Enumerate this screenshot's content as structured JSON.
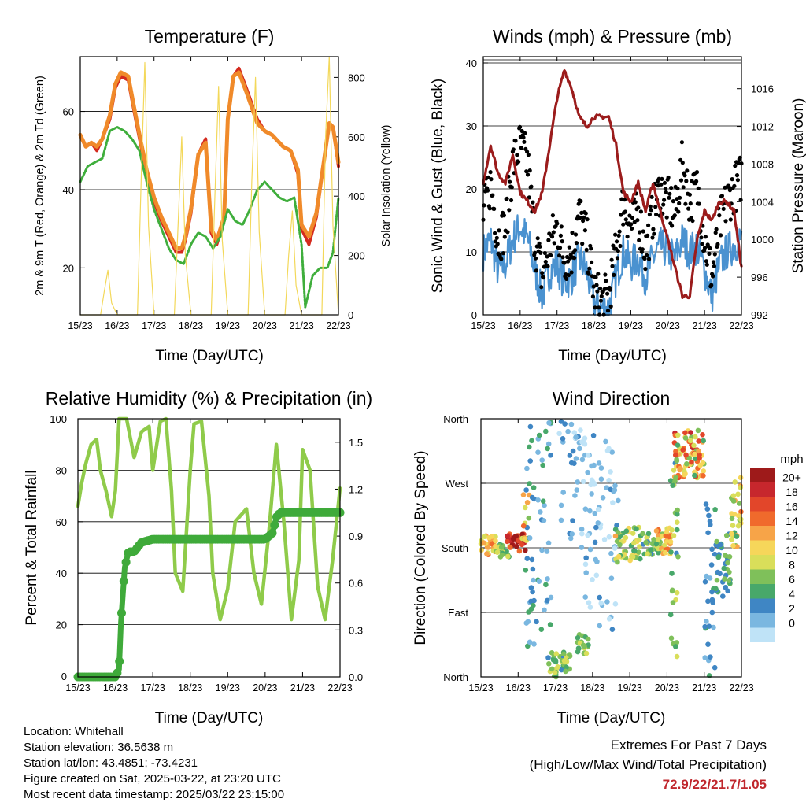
{
  "footer": {
    "location": "Location: Whitehall",
    "elevation": "Station elevation: 36.5638 m",
    "latlon": "Station lat/lon: 43.4851; -73.4231",
    "created": "Figure created on Sat, 2025-03-22, at 23:20 UTC",
    "latest": "Most recent data timestamp: 2025/03/22 23:15:00",
    "extremes_title": "Extremes For Past 7 Days",
    "extremes_sub": "(High/Low/Max Wind/Total Precipitation)",
    "extremes_values": "72.9/22/21.7/1.05"
  },
  "colors": {
    "temp2m": "#d42a1e",
    "temp9m": "#f08a2a",
    "dew": "#3fae3c",
    "solar": "#f3d85a",
    "gust": "#000000",
    "wind": "#4a92d0",
    "pressure": "#9b1c1c",
    "rh": "#8fcb4a",
    "precip": "#3faa3a"
  },
  "chart_data": [
    {
      "type": "line",
      "title": "Temperature (F)",
      "xlabel": "Time (Day/UTC)",
      "ylabel": "2m & 9m T (Red, Orange) & 2m Td (Green)",
      "y2label": "Solar Insolation (Yellow)",
      "xticks": [
        "15/23",
        "16/23",
        "17/23",
        "18/23",
        "19/23",
        "20/23",
        "21/23",
        "22/23"
      ],
      "xlim": [
        0,
        7
      ],
      "ylim": [
        8,
        74
      ],
      "yticks": [
        20,
        40,
        60
      ],
      "y2lim": [
        0,
        870
      ],
      "y2ticks": [
        0,
        200,
        400,
        600,
        800
      ],
      "grid": true,
      "series": [
        {
          "key": "temp2m",
          "x": [
            0,
            0.15,
            0.3,
            0.45,
            0.6,
            0.8,
            0.95,
            1.1,
            1.3,
            1.5,
            1.8,
            2.0,
            2.2,
            2.4,
            2.6,
            2.75,
            2.85,
            3.0,
            3.2,
            3.4,
            3.55,
            3.7,
            3.9,
            4.0,
            4.15,
            4.3,
            4.5,
            4.8,
            5.0,
            5.2,
            5.5,
            5.7,
            5.9,
            6.0,
            6.2,
            6.4,
            6.6,
            6.75,
            6.85,
            7.0
          ],
          "y": [
            54,
            51,
            52,
            50,
            53,
            58,
            66,
            69,
            68,
            58,
            44,
            37,
            32,
            28,
            24,
            24,
            27,
            34,
            49,
            53,
            29,
            26,
            32,
            58,
            69,
            71,
            66,
            58,
            55,
            54,
            51,
            50,
            44,
            30,
            26,
            33,
            47,
            57,
            56,
            46
          ]
        },
        {
          "key": "temp9m",
          "x": [
            0,
            0.15,
            0.3,
            0.45,
            0.6,
            0.8,
            0.95,
            1.1,
            1.3,
            1.5,
            1.8,
            2.0,
            2.2,
            2.4,
            2.6,
            2.75,
            2.85,
            3.0,
            3.2,
            3.4,
            3.55,
            3.7,
            3.9,
            4.0,
            4.15,
            4.3,
            4.5,
            4.8,
            5.0,
            5.2,
            5.5,
            5.7,
            5.9,
            6.0,
            6.2,
            6.4,
            6.6,
            6.75,
            6.85,
            7.0
          ],
          "y": [
            54,
            51,
            52,
            51,
            53,
            59,
            67,
            70,
            69,
            59,
            45,
            38,
            33,
            29,
            25,
            25,
            28,
            35,
            49,
            52,
            30,
            27,
            33,
            58,
            69,
            70,
            65,
            57,
            55,
            54,
            51,
            50,
            45,
            31,
            28,
            34,
            47,
            57,
            56,
            47
          ]
        },
        {
          "key": "dew",
          "x": [
            0,
            0.2,
            0.4,
            0.6,
            0.8,
            1.0,
            1.2,
            1.4,
            1.6,
            1.8,
            2.0,
            2.2,
            2.4,
            2.6,
            2.8,
            3.0,
            3.2,
            3.4,
            3.6,
            3.8,
            4.0,
            4.2,
            4.4,
            4.6,
            4.8,
            5.0,
            5.2,
            5.4,
            5.6,
            5.8,
            6.0,
            6.1,
            6.3,
            6.5,
            6.7,
            6.85,
            7.0
          ],
          "y": [
            42,
            46,
            47,
            48,
            55,
            56,
            55,
            53,
            50,
            42,
            35,
            30,
            25,
            22,
            21,
            26,
            29,
            28,
            25,
            28,
            35,
            32,
            31,
            35,
            40,
            42,
            40,
            38,
            37,
            38,
            26,
            10,
            18,
            20,
            20,
            24,
            38
          ]
        },
        {
          "key": "solar",
          "x": [
            0,
            0.55,
            0.65,
            0.75,
            0.85,
            1.0,
            1.55,
            1.65,
            1.75,
            1.85,
            2.0,
            2.55,
            2.65,
            2.75,
            2.85,
            3.0,
            3.55,
            3.65,
            3.75,
            3.85,
            4.0,
            4.55,
            4.65,
            4.75,
            4.85,
            5.0,
            5.55,
            5.65,
            5.75,
            5.85,
            6.0,
            6.55,
            6.65,
            6.75,
            6.85,
            7.0
          ],
          "y": [
            0,
            0,
            80,
            150,
            40,
            0,
            0,
            450,
            850,
            300,
            0,
            0,
            300,
            600,
            200,
            0,
            0,
            400,
            770,
            250,
            0,
            0,
            450,
            800,
            280,
            0,
            0,
            200,
            350,
            100,
            0,
            0,
            600,
            870,
            300,
            0
          ]
        }
      ]
    },
    {
      "type": "line",
      "title": "Winds (mph) & Pressure (mb)",
      "xlabel": "Time (Day/UTC)",
      "ylabel": "Sonic Wind & Gust (Blue, Black)",
      "y2label": "Station Pressure (Maroon)",
      "xticks": [
        "15/23",
        "16/23",
        "17/23",
        "18/23",
        "19/23",
        "20/23",
        "21/23",
        "22/23"
      ],
      "xlim": [
        0,
        7
      ],
      "ylim": [
        0,
        41
      ],
      "yticks": [
        0,
        10,
        20,
        30,
        40
      ],
      "y2lim": [
        992,
        1019.4
      ],
      "y2ticks": [
        992,
        996,
        1000,
        1004,
        1008,
        1012,
        1016
      ],
      "grid": true,
      "series": [
        {
          "key": "gust",
          "x": [
            0,
            0.2,
            0.4,
            0.6,
            0.8,
            1.0,
            1.2,
            1.4,
            1.6,
            1.8,
            2.0,
            2.2,
            2.4,
            2.6,
            2.8,
            3.0,
            3.2,
            3.4,
            3.6,
            3.8,
            4.0,
            4.2,
            4.4,
            4.6,
            4.8,
            5.0,
            5.2,
            5.4,
            5.6,
            5.8,
            6.0,
            6.2,
            6.4,
            6.6,
            6.8,
            7.0
          ],
          "y": [
            16,
            21,
            12,
            14,
            24,
            27,
            24,
            12,
            6,
            11,
            14,
            9,
            10,
            16,
            12,
            4,
            2,
            3,
            10,
            18,
            14,
            16,
            10,
            16,
            20,
            18,
            16,
            24,
            18,
            20,
            12,
            6,
            14,
            18,
            20,
            22
          ]
        },
        {
          "key": "wind",
          "x": [
            0,
            0.2,
            0.4,
            0.6,
            0.8,
            1.0,
            1.2,
            1.4,
            1.6,
            1.8,
            2.0,
            2.2,
            2.4,
            2.6,
            2.8,
            3.0,
            3.2,
            3.4,
            3.6,
            3.8,
            4.0,
            4.2,
            4.4,
            4.6,
            4.8,
            5.0,
            5.2,
            5.4,
            5.6,
            5.8,
            6.0,
            6.2,
            6.4,
            6.6,
            6.8,
            7.0
          ],
          "y": [
            10,
            12,
            7,
            8,
            12,
            14,
            12,
            7,
            3,
            7,
            8,
            5,
            6,
            9,
            7,
            2,
            1,
            1,
            6,
            10,
            8,
            9,
            6,
            9,
            11,
            10,
            9,
            12,
            10,
            11,
            7,
            3,
            8,
            10,
            11,
            12
          ]
        },
        {
          "key": "pressure",
          "x": [
            0,
            0.2,
            0.4,
            0.6,
            0.8,
            1.0,
            1.2,
            1.4,
            1.6,
            1.8,
            2.0,
            2.2,
            2.4,
            2.6,
            2.8,
            3.0,
            3.2,
            3.4,
            3.6,
            3.8,
            4.0,
            4.2,
            4.4,
            4.6,
            4.8,
            5.0,
            5.2,
            5.4,
            5.6,
            5.8,
            6.0,
            6.2,
            6.4,
            6.6,
            6.8,
            7.0
          ],
          "y": [
            1006,
            1010,
            1007,
            1006,
            1009,
            1005,
            1004,
            1003,
            1005,
            1010,
            1015,
            1018,
            1016,
            1013,
            1012,
            1013,
            1013,
            1013,
            1010,
            1005,
            1004,
            1006,
            1003,
            1006,
            1003,
            1000,
            997,
            994,
            994,
            1000,
            1003,
            1002,
            1004,
            1004,
            1003,
            997
          ]
        }
      ]
    },
    {
      "type": "line",
      "title": "Relative Humidity (%) & Precipitation (in)",
      "xlabel": "Time (Day/UTC)",
      "ylabel": "Percent & Total Rainfall",
      "xticks": [
        "15/23",
        "16/23",
        "17/23",
        "18/23",
        "19/23",
        "20/23",
        "21/23",
        "22/23"
      ],
      "xlim": [
        0,
        7
      ],
      "ylim": [
        -0.3,
        100
      ],
      "yticks": [
        0,
        20,
        40,
        60,
        80,
        100
      ],
      "y2lim": [
        0,
        1.65
      ],
      "y2ticks": [
        "0.0",
        "0.3",
        "0.6",
        "0.9",
        "1.2",
        "1.5"
      ],
      "grid": true,
      "series": [
        {
          "key": "rh",
          "x": [
            0,
            0.1,
            0.2,
            0.35,
            0.5,
            0.6,
            0.75,
            0.9,
            1.0,
            1.1,
            1.3,
            1.5,
            1.7,
            1.9,
            2.0,
            2.2,
            2.35,
            2.5,
            2.6,
            2.8,
            3.0,
            3.1,
            3.3,
            3.5,
            3.6,
            3.8,
            4.0,
            4.2,
            4.5,
            4.7,
            4.9,
            5.1,
            5.3,
            5.5,
            5.7,
            5.9,
            6.0,
            6.2,
            6.4,
            6.6,
            6.8,
            7.0
          ],
          "y": [
            66,
            75,
            82,
            90,
            92,
            80,
            72,
            62,
            72,
            100,
            100,
            85,
            95,
            97,
            80,
            99,
            100,
            72,
            40,
            33,
            80,
            98,
            99,
            70,
            40,
            22,
            34,
            60,
            65,
            40,
            28,
            56,
            90,
            60,
            22,
            45,
            88,
            80,
            35,
            22,
            45,
            73
          ]
        },
        {
          "key": "precip",
          "x": [
            0,
            0.5,
            1.0,
            1.1,
            1.15,
            1.25,
            1.35,
            1.5,
            1.7,
            2.0,
            3.0,
            4.0,
            5.0,
            5.2,
            5.3,
            5.4,
            6.0,
            7.0
          ],
          "y": [
            0,
            0,
            0,
            0.05,
            0.35,
            0.7,
            0.8,
            0.8,
            0.86,
            0.88,
            0.88,
            0.88,
            0.88,
            0.92,
            1.02,
            1.05,
            1.05,
            1.05
          ]
        }
      ]
    },
    {
      "type": "scatter",
      "title": "Wind Direction",
      "xlabel": "Time (Day/UTC)",
      "ylabel": "Direction (Colored By Speed)",
      "xticks": [
        "15/23",
        "16/23",
        "17/23",
        "18/23",
        "19/23",
        "20/23",
        "21/23",
        "22/23"
      ],
      "xlim": [
        0,
        7
      ],
      "ylim": [
        0,
        360
      ],
      "yticklabels": [
        "North",
        "East",
        "South",
        "West",
        "North"
      ],
      "colorbar": {
        "title": "mph",
        "labels": [
          "20+",
          "18",
          "16",
          "14",
          "12",
          "10",
          "8",
          "6",
          "4",
          "2",
          "0"
        ],
        "colors": [
          "#9e1a1a",
          "#c7272d",
          "#e2462a",
          "#f06a2c",
          "#f7a448",
          "#f6d65a",
          "#d9de5a",
          "#7fc05a",
          "#48a86a",
          "#3f86c4",
          "#7ab7e0",
          "#bfe3f7"
        ]
      },
      "groups": [
        {
          "x0": 0.0,
          "x1": 0.4,
          "d0": 170,
          "d1": 200,
          "s0": 8,
          "s1": 14,
          "n": 28
        },
        {
          "x0": 0.4,
          "x1": 0.8,
          "d0": 165,
          "d1": 185,
          "s0": 5,
          "s1": 10,
          "n": 22
        },
        {
          "x0": 0.7,
          "x1": 1.2,
          "d0": 175,
          "d1": 200,
          "s0": 14,
          "s1": 22,
          "n": 32
        },
        {
          "x0": 1.1,
          "x1": 1.3,
          "d0": 190,
          "d1": 270,
          "s0": 4,
          "s1": 16,
          "n": 14
        },
        {
          "x0": 1.2,
          "x1": 1.9,
          "d0": 40,
          "d1": 360,
          "s0": 1,
          "s1": 6,
          "n": 60
        },
        {
          "x0": 1.8,
          "x1": 2.4,
          "d0": 0,
          "d1": 35,
          "s0": 4,
          "s1": 10,
          "n": 40
        },
        {
          "x0": 2.1,
          "x1": 2.8,
          "d0": 180,
          "d1": 360,
          "s0": 0,
          "s1": 4,
          "n": 40
        },
        {
          "x0": 2.6,
          "x1": 2.9,
          "d0": 30,
          "d1": 60,
          "s0": 5,
          "s1": 9,
          "n": 20
        },
        {
          "x0": 2.8,
          "x1": 3.7,
          "d0": 60,
          "d1": 340,
          "s0": 0,
          "s1": 3,
          "n": 70
        },
        {
          "x0": 3.6,
          "x1": 4.3,
          "d0": 160,
          "d1": 210,
          "s0": 5,
          "s1": 12,
          "n": 50
        },
        {
          "x0": 4.3,
          "x1": 4.9,
          "d0": 170,
          "d1": 200,
          "s0": 4,
          "s1": 10,
          "n": 36
        },
        {
          "x0": 4.7,
          "x1": 5.1,
          "d0": 170,
          "d1": 210,
          "s0": 8,
          "s1": 15,
          "n": 30
        },
        {
          "x0": 5.1,
          "x1": 5.3,
          "d0": 0,
          "d1": 300,
          "s0": 3,
          "s1": 10,
          "n": 30
        },
        {
          "x0": 5.2,
          "x1": 6.0,
          "d0": 275,
          "d1": 345,
          "s0": 6,
          "s1": 18,
          "n": 80
        },
        {
          "x0": 6.0,
          "x1": 6.3,
          "d0": 0,
          "d1": 250,
          "s0": 2,
          "s1": 5,
          "n": 30
        },
        {
          "x0": 6.3,
          "x1": 6.7,
          "d0": 110,
          "d1": 200,
          "s0": 3,
          "s1": 8,
          "n": 40
        },
        {
          "x0": 6.7,
          "x1": 7.0,
          "d0": 180,
          "d1": 280,
          "s0": 6,
          "s1": 14,
          "n": 30
        }
      ]
    }
  ]
}
